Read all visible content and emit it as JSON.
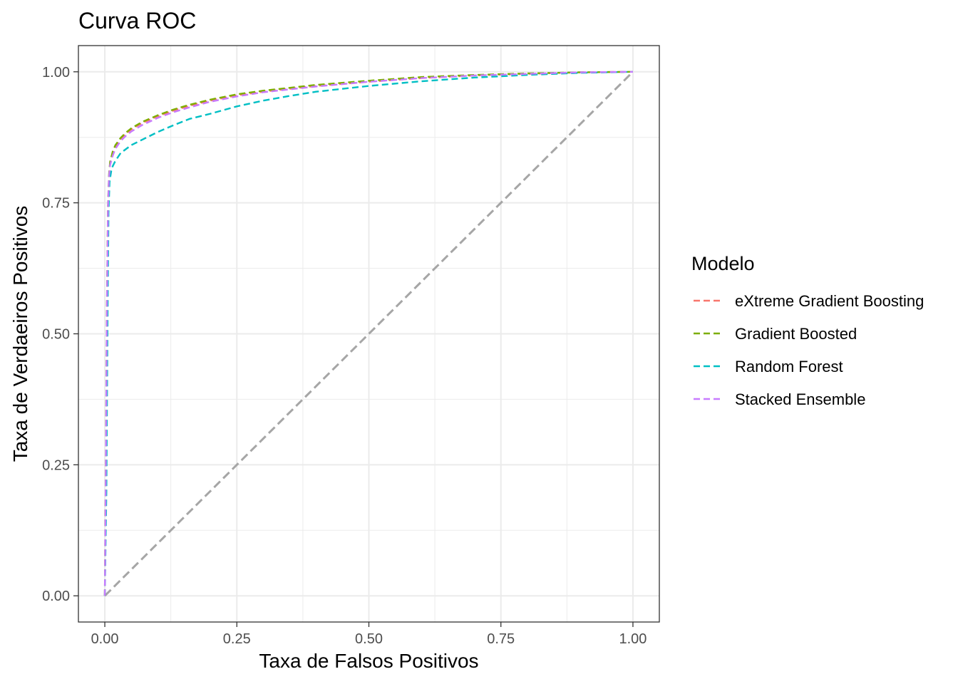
{
  "chart_data": {
    "type": "line",
    "title": "Curva ROC",
    "xlabel": "Taxa de Falsos Positivos",
    "ylabel": "Taxa de Verdaeiros Positivos",
    "xlim": [
      -0.05,
      1.05
    ],
    "ylim": [
      -0.05,
      1.05
    ],
    "x_ticks": [
      "0.00",
      "0.25",
      "0.50",
      "0.75",
      "1.00"
    ],
    "y_ticks": [
      "0.00",
      "0.25",
      "0.50",
      "0.75",
      "1.00"
    ],
    "grid": true,
    "legend": {
      "title": "Modelo",
      "placement": "right"
    },
    "series": [
      {
        "name": "eXtreme Gradient Boosting",
        "color": "#F8766D",
        "x": [
          0,
          0.002,
          0.004,
          0.006,
          0.008,
          0.01,
          0.015,
          0.02,
          0.03,
          0.04,
          0.05,
          0.07,
          0.1,
          0.13,
          0.16,
          0.2,
          0.25,
          0.3,
          0.4,
          0.5,
          0.6,
          0.7,
          0.8,
          0.9,
          1.0
        ],
        "y": [
          0,
          0.25,
          0.55,
          0.74,
          0.8,
          0.825,
          0.845,
          0.858,
          0.872,
          0.882,
          0.89,
          0.902,
          0.915,
          0.926,
          0.935,
          0.945,
          0.955,
          0.962,
          0.973,
          0.981,
          0.988,
          0.993,
          0.996,
          0.999,
          1.0
        ]
      },
      {
        "name": "Gradient Boosted",
        "color": "#7CAE00",
        "x": [
          0,
          0.002,
          0.004,
          0.006,
          0.008,
          0.01,
          0.015,
          0.02,
          0.03,
          0.04,
          0.05,
          0.07,
          0.1,
          0.13,
          0.16,
          0.2,
          0.25,
          0.3,
          0.4,
          0.5,
          0.6,
          0.7,
          0.8,
          0.9,
          1.0
        ],
        "y": [
          0,
          0.25,
          0.56,
          0.745,
          0.805,
          0.828,
          0.848,
          0.86,
          0.874,
          0.884,
          0.892,
          0.904,
          0.917,
          0.928,
          0.937,
          0.947,
          0.957,
          0.964,
          0.975,
          0.983,
          0.99,
          0.994,
          0.997,
          0.999,
          1.0
        ]
      },
      {
        "name": "Random Forest",
        "color": "#00BFC4",
        "x": [
          0,
          0.003,
          0.005,
          0.007,
          0.009,
          0.012,
          0.015,
          0.02,
          0.03,
          0.05,
          0.08,
          0.1,
          0.13,
          0.16,
          0.2,
          0.25,
          0.3,
          0.35,
          0.4,
          0.5,
          0.6,
          0.7,
          0.8,
          0.9,
          1.0
        ],
        "y": [
          0,
          0.2,
          0.5,
          0.73,
          0.79,
          0.81,
          0.82,
          0.83,
          0.845,
          0.86,
          0.875,
          0.885,
          0.898,
          0.91,
          0.92,
          0.934,
          0.945,
          0.954,
          0.962,
          0.973,
          0.982,
          0.989,
          0.994,
          0.998,
          1.0
        ]
      },
      {
        "name": "Stacked Ensemble",
        "color": "#C77CFF",
        "x": [
          0,
          0.002,
          0.004,
          0.006,
          0.008,
          0.01,
          0.015,
          0.02,
          0.03,
          0.04,
          0.05,
          0.07,
          0.1,
          0.13,
          0.16,
          0.2,
          0.25,
          0.3,
          0.4,
          0.5,
          0.6,
          0.7,
          0.8,
          0.9,
          1.0
        ],
        "y": [
          0,
          0.25,
          0.55,
          0.74,
          0.8,
          0.822,
          0.84,
          0.853,
          0.868,
          0.878,
          0.886,
          0.898,
          0.912,
          0.923,
          0.932,
          0.943,
          0.953,
          0.961,
          0.972,
          0.981,
          0.988,
          0.993,
          0.996,
          0.999,
          1.0
        ]
      }
    ],
    "reference_line": {
      "x": [
        0,
        1
      ],
      "y": [
        0,
        1
      ],
      "color": "#A6A6A6"
    }
  }
}
